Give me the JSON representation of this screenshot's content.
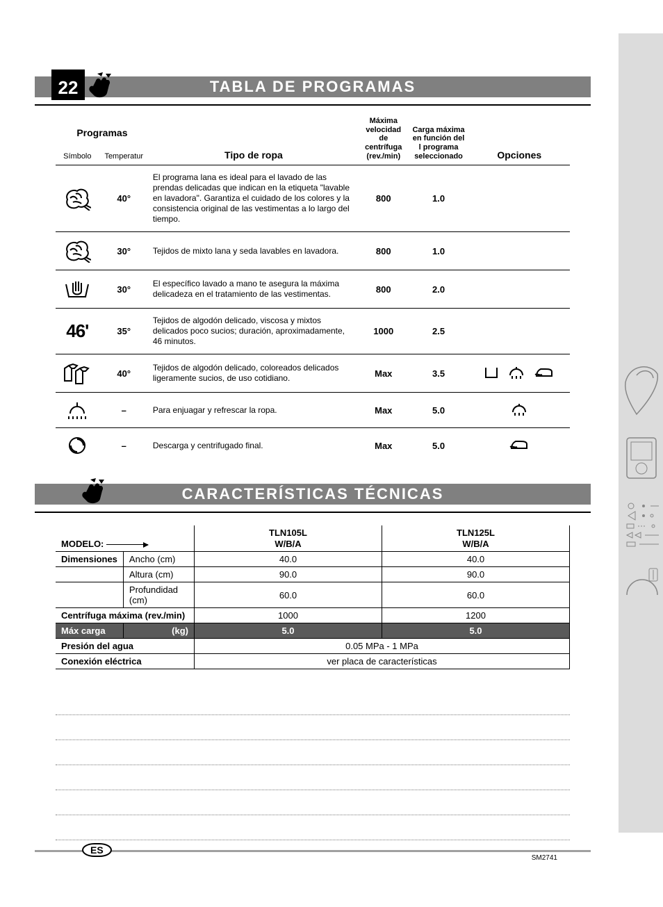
{
  "colors": {
    "header_bar": "#808080",
    "header_text": "#ffffff",
    "black_box": "#000000",
    "dark_row_bg": "#5a5a5a",
    "footer_rule": "#a0a0a0",
    "dotted": "#7a7a7a",
    "right_col": "#dcdcdc"
  },
  "page_number": "22",
  "language_badge": "ES",
  "doc_code": "SM2741",
  "programs_header": "TABLA DE PROGRAMAS",
  "programs_table": {
    "head": {
      "programas": "Programas",
      "simbolo": "Símbolo",
      "temperatur": "Temperatur",
      "tipo": "Tipo de ropa",
      "spin": "Máxima velocidad de centrífuga (rev./min)",
      "load": "Carga máxima en función del l programa seleccionado",
      "opciones": "Opciones"
    },
    "rows": [
      {
        "symbol_type": "wool",
        "temp": "40°",
        "desc": "El programa lana es ideal para el lavado de las prendas delicadas que indican en la etiqueta \"lavable en lavadora\". Garantiza el cuidado de los colores y la consistencia original de las vestimentas a lo largo del tiempo.",
        "spin": "800",
        "load": "1.0",
        "options": []
      },
      {
        "symbol_type": "wool",
        "temp": "30°",
        "desc": "Tejidos de mixto lana y seda lavables en lavadora.",
        "spin": "800",
        "load": "1.0",
        "options": []
      },
      {
        "symbol_type": "handwash",
        "temp": "30°",
        "desc": "El específico lavado a mano te asegura la máxima delicadeza en el tratamiento de las vestimentas.",
        "spin": "800",
        "load": "2.0",
        "options": []
      },
      {
        "symbol_type": "46min",
        "symbol_text": "46'",
        "temp": "35°",
        "desc": "Tejidos de algodón delicado, viscosa y mixtos delicados poco sucios; duración, aproximadamente, 46 minutos.",
        "spin": "1000",
        "load": "2.5",
        "options": []
      },
      {
        "symbol_type": "shirts",
        "temp": "40°",
        "desc": "Tejidos de algodón delicado, coloreados delicados ligeramente sucios, de uso cotidiano.",
        "spin": "Max",
        "load": "3.5",
        "options": [
          "prewash",
          "extra-rinse",
          "easy-iron"
        ]
      },
      {
        "symbol_type": "rinse",
        "temp": "–",
        "desc": "Para enjuagar y refrescar la ropa.",
        "spin": "Max",
        "load": "5.0",
        "options": [
          "extra-rinse"
        ]
      },
      {
        "symbol_type": "spin",
        "temp": "–",
        "desc": "Descarga y centrifugado final.",
        "spin": "Max",
        "load": "5.0",
        "options": [
          "easy-iron"
        ]
      }
    ]
  },
  "tech_header": "CARACTERÍSTICAS TÉCNICAS",
  "tech_table": {
    "modelo_label": "MODELO:",
    "models": [
      {
        "name": "TLN105L",
        "sub": "W/B/A"
      },
      {
        "name": "TLN125L",
        "sub": "W/B/A"
      }
    ],
    "rows": [
      {
        "group": "Dimensiones",
        "label": "Ancho (cm)",
        "v1": "40.0",
        "v2": "40.0"
      },
      {
        "group": "",
        "label": "Altura (cm)",
        "v1": "90.0",
        "v2": "90.0"
      },
      {
        "group": "",
        "label": "Profundidad (cm)",
        "v1": "60.0",
        "v2": "60.0"
      },
      {
        "group": "Centrífuga máxima (rev./min)",
        "label": "",
        "v1": "1000",
        "v2": "1200"
      },
      {
        "group": "Máx carga",
        "label": "(kg)",
        "dark": true,
        "v1": "5.0",
        "v2": "5.0"
      },
      {
        "group": "Presión del agua",
        "label": "",
        "span": "0.05 MPa - 1 MPa"
      },
      {
        "group": "Conexión eléctrica",
        "label": "",
        "span": "ver placa de características"
      }
    ]
  },
  "notes_lines": 6
}
